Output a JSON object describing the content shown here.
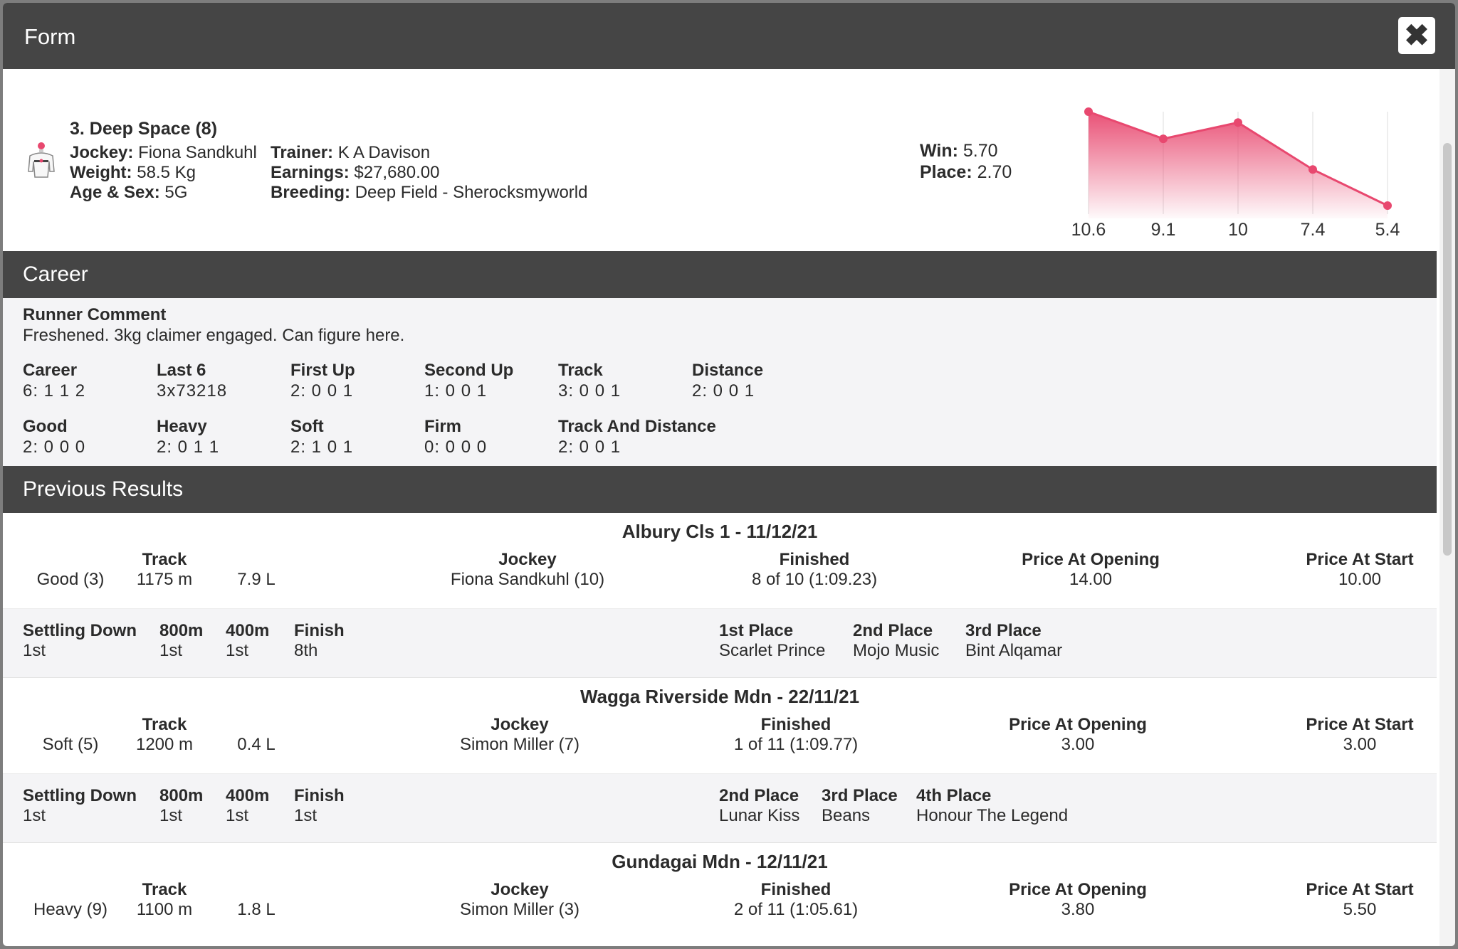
{
  "modal": {
    "title": "Form"
  },
  "runner": {
    "name": "3. Deep Space (8)",
    "jockey_label": "Jockey:",
    "jockey": "Fiona Sandkuhl",
    "weight_label": "Weight:",
    "weight": "58.5 Kg",
    "age_sex_label": "Age & Sex:",
    "age_sex": "5G",
    "trainer_label": "Trainer:",
    "trainer": "K A Davison",
    "earnings_label": "Earnings:",
    "earnings": "$27,680.00",
    "breeding_label": "Breeding:",
    "breeding": "Deep Field - Sherocksmyworld",
    "win_label": "Win:",
    "win": "5.70",
    "place_label": "Place:",
    "place": "2.70"
  },
  "chart_data": {
    "type": "area",
    "categories": [
      "10.6",
      "9.1",
      "10",
      "7.4",
      "5.4"
    ],
    "values": [
      10.6,
      9.1,
      10,
      7.4,
      5.4
    ],
    "color": "#e8486f"
  },
  "career": {
    "title": "Career",
    "comment_label": "Runner Comment",
    "comment": "Freshened. 3kg claimer engaged. Can figure here.",
    "stats": [
      {
        "label": "Career",
        "value": "6: 1 1 2"
      },
      {
        "label": "Last 6",
        "value": "3x73218"
      },
      {
        "label": "First Up",
        "value": "2: 0 0 1"
      },
      {
        "label": "Second Up",
        "value": "1: 0 0 1"
      },
      {
        "label": "Track",
        "value": "3: 0 0 1"
      },
      {
        "label": "Distance",
        "value": "2: 0 0 1"
      },
      {
        "label": "Good",
        "value": "2: 0 0 0"
      },
      {
        "label": "Heavy",
        "value": "2: 0 1 1"
      },
      {
        "label": "Soft",
        "value": "2: 1 0 1"
      },
      {
        "label": "Firm",
        "value": "0: 0 0 0"
      },
      {
        "label": "Track And Distance",
        "value": "2: 0 0 1"
      }
    ]
  },
  "results": {
    "title": "Previous Results",
    "labels": {
      "track": "Track",
      "jockey": "Jockey",
      "finished": "Finished",
      "price_open": "Price At Opening",
      "price_start": "Price At Start",
      "settling": "Settling Down",
      "m800": "800m",
      "m400": "400m",
      "finish": "Finish"
    },
    "races": [
      {
        "title": "Albury Cls 1 - 11/12/21",
        "condition": "Good (3)",
        "distance": "1175 m",
        "margin": "7.9 L",
        "jockey": "Fiona Sandkuhl (10)",
        "finished": "8 of 10 (1:09.23)",
        "price_open": "14.00",
        "price_start": "10.00",
        "settling": "1st",
        "m800": "1st",
        "m400": "1st",
        "finish": "8th",
        "places": [
          {
            "label": "1st Place",
            "name": "Scarlet Prince"
          },
          {
            "label": "2nd Place",
            "name": "Mojo Music"
          },
          {
            "label": "3rd Place",
            "name": "Bint Alqamar"
          }
        ]
      },
      {
        "title": "Wagga Riverside Mdn - 22/11/21",
        "condition": "Soft (5)",
        "distance": "1200 m",
        "margin": "0.4 L",
        "jockey": "Simon Miller (7)",
        "finished": "1 of 11 (1:09.77)",
        "price_open": "3.00",
        "price_start": "3.00",
        "settling": "1st",
        "m800": "1st",
        "m400": "1st",
        "finish": "1st",
        "places": [
          {
            "label": "2nd Place",
            "name": "Lunar Kiss"
          },
          {
            "label": "3rd Place",
            "name": "Beans"
          },
          {
            "label": "4th Place",
            "name": "Honour The Legend"
          }
        ]
      },
      {
        "title": "Gundagai Mdn - 12/11/21",
        "condition": "Heavy (9)",
        "distance": "1100 m",
        "margin": "1.8 L",
        "jockey": "Simon Miller (3)",
        "finished": "2 of 11 (1:05.61)",
        "price_open": "3.80",
        "price_start": "5.50"
      }
    ]
  }
}
